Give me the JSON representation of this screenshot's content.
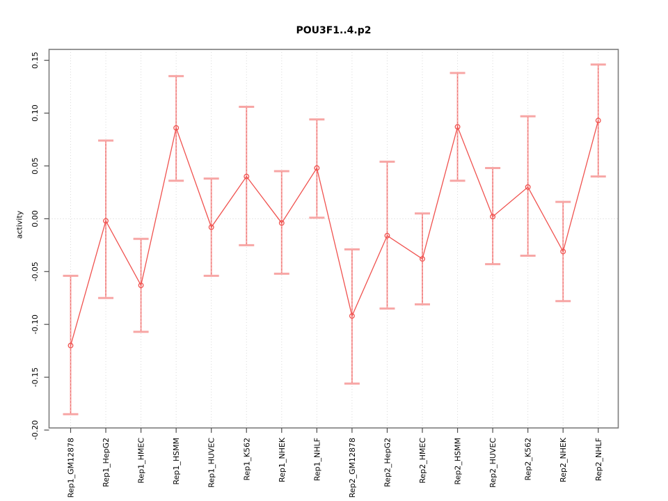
{
  "chart_data": {
    "type": "scatter",
    "title": "POU3F1..4.p2",
    "xlabel": "",
    "ylabel": "activity",
    "categories": [
      "Rep1_GM12878",
      "Rep1_HepG2",
      "Rep1_HMEC",
      "Rep1_HSMM",
      "Rep1_HUVEC",
      "Rep1_K562",
      "Rep1_NHEK",
      "Rep1_NHLF",
      "Rep2_GM12878",
      "Rep2_HepG2",
      "Rep2_HMEC",
      "Rep2_HSMM",
      "Rep2_HUVEC",
      "Rep2_K562",
      "Rep2_NHEK",
      "Rep2_NHLF"
    ],
    "series": [
      {
        "name": "activity",
        "marker": "open-circle",
        "connected": true,
        "values": [
          -0.12,
          -0.002,
          -0.063,
          0.086,
          -0.008,
          0.04,
          -0.004,
          0.048,
          -0.092,
          -0.016,
          -0.038,
          0.087,
          0.002,
          0.03,
          -0.031,
          0.093
        ],
        "err_high": [
          -0.054,
          0.074,
          -0.019,
          0.135,
          0.038,
          0.106,
          0.045,
          0.094,
          -0.029,
          0.054,
          0.005,
          0.138,
          0.048,
          0.097,
          0.016,
          0.146
        ],
        "err_low": [
          -0.185,
          -0.075,
          -0.107,
          0.036,
          -0.054,
          -0.025,
          -0.052,
          0.001,
          -0.156,
          -0.085,
          -0.081,
          0.036,
          -0.043,
          -0.035,
          -0.078,
          0.04
        ]
      }
    ],
    "ylim": [
      -0.198,
      0.1603
    ],
    "ytick_labels": [
      "0.15",
      "0.10",
      "0.05",
      "0.00",
      "-0.05",
      "-0.10",
      "-0.15",
      "-0.20"
    ],
    "grid": "dotted vertical gridline at each category; dotted horizontal line at y=0",
    "legend_position": "none",
    "colors": {
      "series_line": "#f0524f",
      "error_bar_fill": "#f7a6a5",
      "error_bar_dash": "#ee6f6d",
      "grid": "#d9d9d9",
      "zero_line": "#cfcfcf",
      "box": "#7d7d7d",
      "tick": "#4d4d4d",
      "text": "#000000",
      "background": "#ffffff"
    }
  }
}
